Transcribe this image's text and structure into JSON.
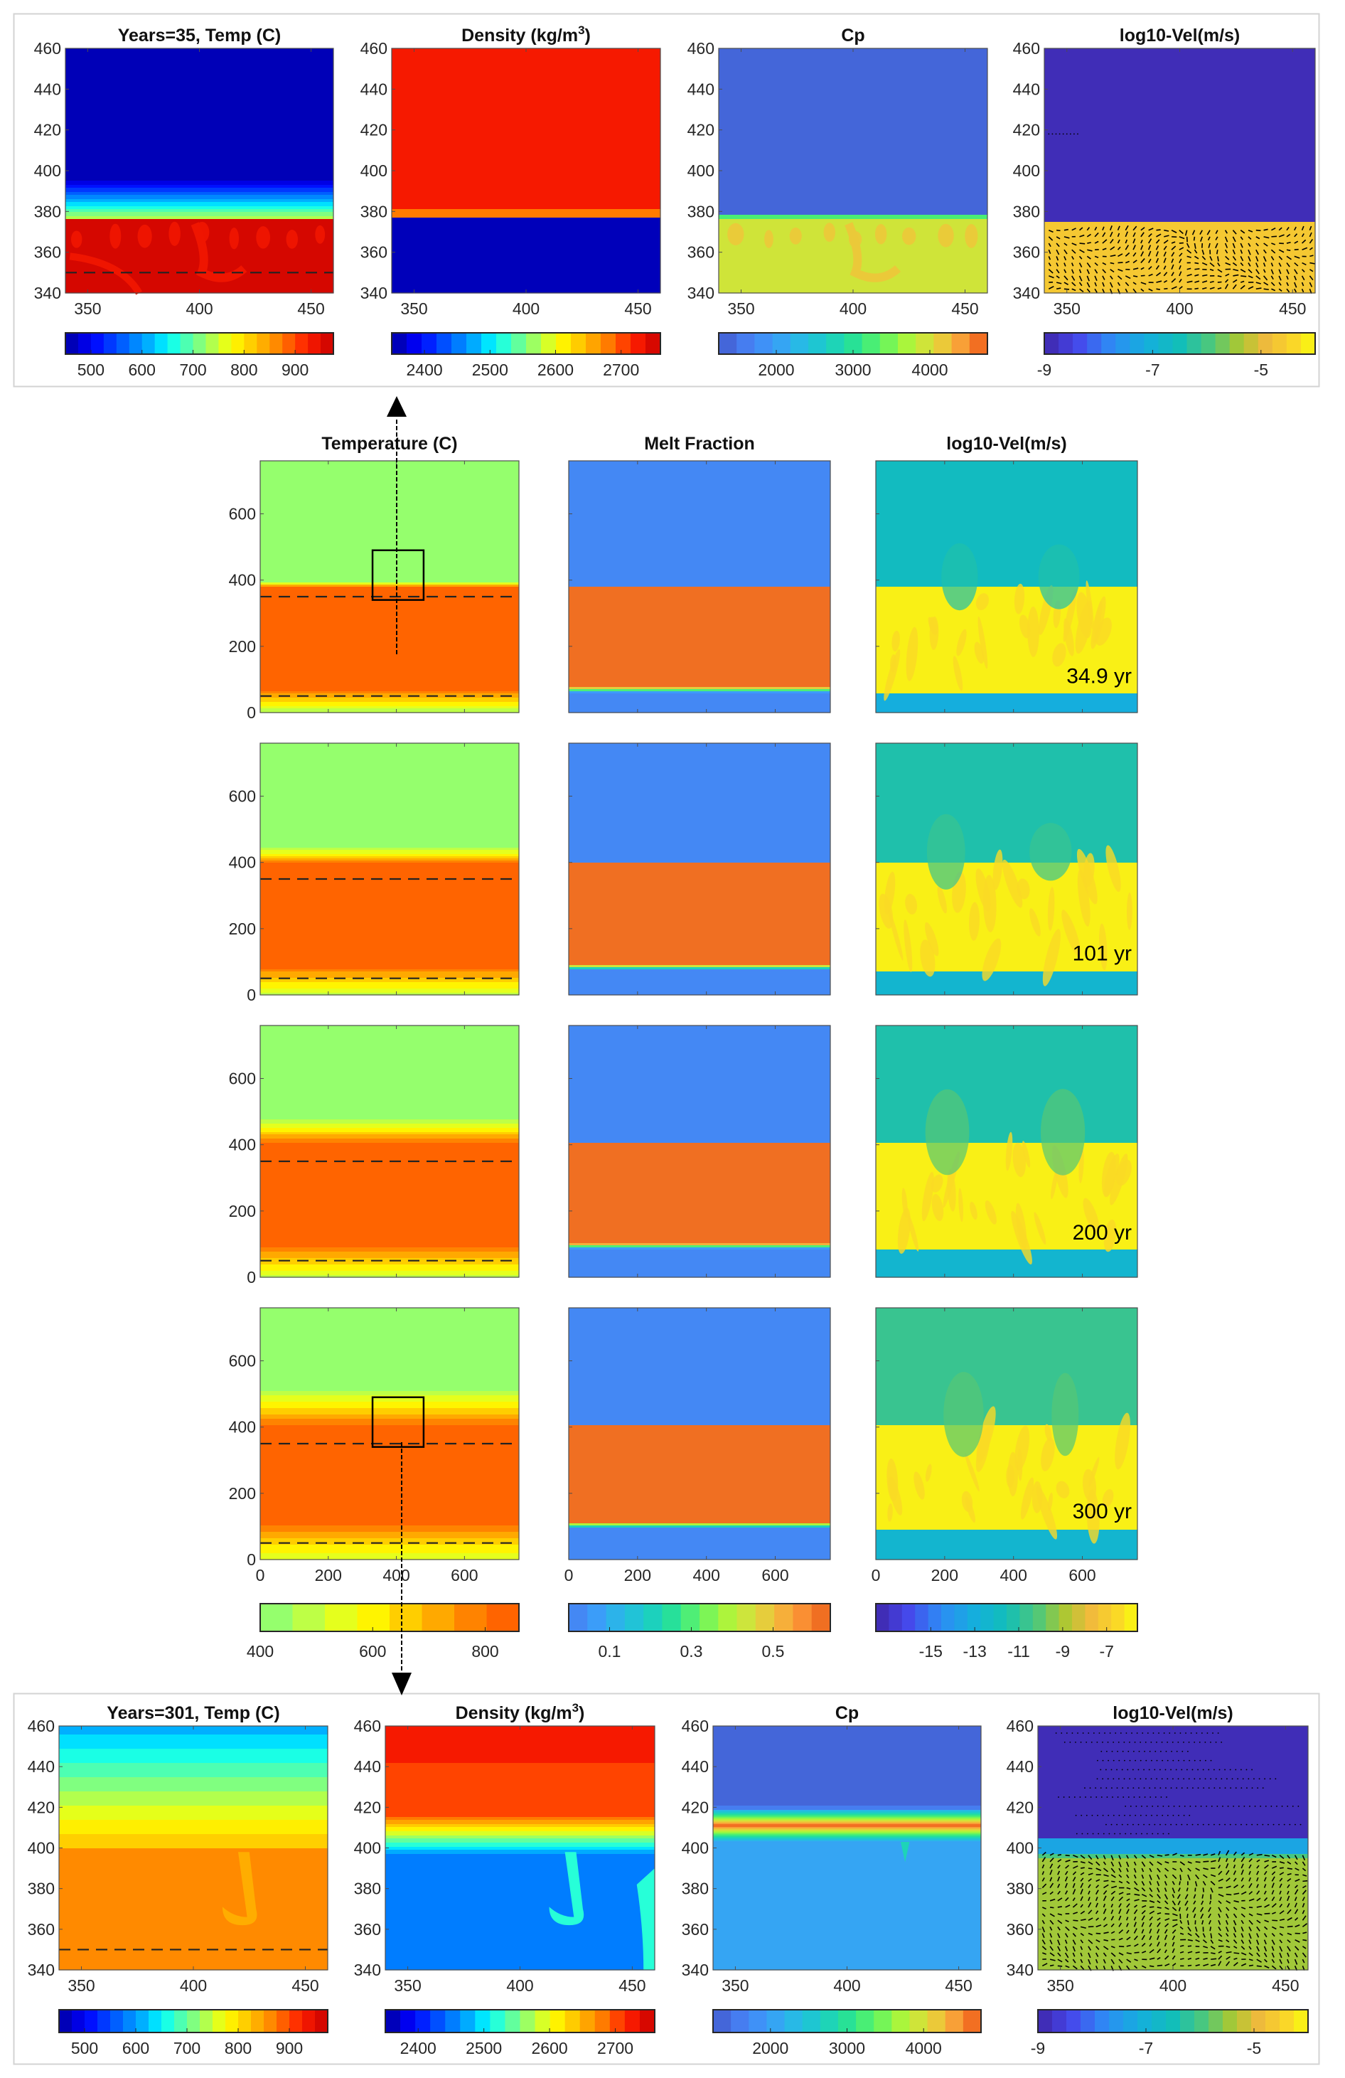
{
  "figure": {
    "description": "Magma-chamber convection simulation snapshots with zoomed insets"
  },
  "chart_data": [
    {
      "id": "top_inset",
      "type": "heatmap",
      "group": "zoom inset (upper)",
      "ylim": [
        340,
        460
      ],
      "xlim": [
        340,
        460
      ],
      "xticks": [
        350,
        400,
        450
      ],
      "yticks": [
        340,
        360,
        380,
        400,
        420,
        440,
        460
      ],
      "panels": [
        {
          "title": "Years=35, Temp (C)",
          "colormap": "jet",
          "clim": [
            450,
            975
          ],
          "nbins": 21,
          "cbar_ticks": [
            500,
            600,
            700,
            800,
            900
          ],
          "field": {
            "upper_value": 460,
            "interface_y": 376,
            "transition_top": 396,
            "lower_value": 950,
            "lower_plume_value": 925,
            "mode": "hot-lower"
          },
          "dashed_line_y": 350
        },
        {
          "title_main": "Density (kg/m",
          "title_sup": "3",
          "title_end": ")",
          "colormap": "jet",
          "clim": [
            2350,
            2760
          ],
          "nbins": 18,
          "cbar_ticks": [
            2400,
            2500,
            2600,
            2700
          ],
          "field": {
            "upper_value": 2720,
            "interface_y": 377,
            "band_value": 2690,
            "band_top": 381,
            "lower_value": 2360,
            "mode": "density"
          }
        },
        {
          "title": "Cp",
          "colormap": "parula",
          "clim": [
            1250,
            4750
          ],
          "nbins": 15,
          "cbar_ticks": [
            2000,
            3000,
            4000
          ],
          "field": {
            "upper_value": 1350,
            "interface_y": 377,
            "lower_value": 3900,
            "lower_plume_value": 4150,
            "mode": "cp35"
          }
        },
        {
          "title": "log10-Vel(m/s)",
          "colormap": "parula",
          "clim": [
            -9,
            -4
          ],
          "nbins": 19,
          "cbar_ticks": [
            -9,
            -7,
            -5
          ],
          "field": {
            "upper_value": -8.9,
            "interface_y": 375,
            "lower_value": -4.6,
            "mode": "vel35"
          },
          "quiver": true
        }
      ]
    },
    {
      "id": "main_grid",
      "type": "heatmap",
      "group": "full domain time series",
      "xlim": [
        0,
        760
      ],
      "ylim": [
        0,
        760
      ],
      "xticks": [
        0,
        200,
        400,
        600
      ],
      "yticks": [
        0,
        200,
        400,
        600
      ],
      "columns": [
        {
          "title": "Temperature (C)",
          "colormap": "jet-trunc",
          "clim": [
            400,
            860
          ],
          "nbins": 8,
          "cbar_ticks": [
            400,
            600,
            800
          ]
        },
        {
          "title": "Melt Fraction",
          "colormap": "parula",
          "clim": [
            0,
            0.64
          ],
          "nbins": 14,
          "cbar_ticks": [
            0.1,
            0.3,
            0.5
          ]
        },
        {
          "title": "log10-Vel(m/s)",
          "colormap": "parula",
          "clim": [
            -17.5,
            -5.6
          ],
          "nbins": 20,
          "cbar_ticks": [
            -15,
            -13,
            -11,
            -9,
            -7
          ]
        }
      ],
      "rows": [
        {
          "time_label": "34.9 yr",
          "chamber_top": 380,
          "chamber_bottom": 65,
          "thermal_halo_top": 395,
          "thermal_halo_bottom": 20,
          "vel_outside": -12.0,
          "vel_below": -13.2,
          "dashed_lines_y": [
            350,
            50
          ],
          "zoom_box": {
            "x": [
              330,
              480
            ],
            "y": [
              340,
              490
            ]
          }
        },
        {
          "time_label": "101 yr",
          "chamber_top": 402,
          "chamber_bottom": 80,
          "thermal_halo_top": 445,
          "thermal_halo_bottom": 10,
          "vel_outside": -11.2,
          "vel_below": -12.5,
          "dashed_lines_y": [
            350,
            50
          ]
        },
        {
          "time_label": "200 yr",
          "chamber_top": 408,
          "chamber_bottom": 90,
          "thermal_halo_top": 480,
          "thermal_halo_bottom": 5,
          "vel_outside": -11.0,
          "vel_below": -12.3,
          "dashed_lines_y": [
            350,
            50
          ]
        },
        {
          "time_label": "300 yr",
          "chamber_top": 408,
          "chamber_bottom": 100,
          "thermal_halo_top": 520,
          "thermal_halo_bottom": 0,
          "vel_outside": -10.6,
          "vel_below": -12.2,
          "dashed_lines_y": [
            350,
            50
          ],
          "zoom_box": {
            "x": [
              330,
              480
            ],
            "y": [
              340,
              490
            ]
          }
        }
      ]
    },
    {
      "id": "bottom_inset",
      "type": "heatmap",
      "group": "zoom inset (lower)",
      "ylim": [
        340,
        460
      ],
      "xlim": [
        340,
        460
      ],
      "xticks": [
        350,
        400,
        450
      ],
      "yticks": [
        340,
        360,
        380,
        400,
        420,
        440,
        460
      ],
      "panels": [
        {
          "title": "Years=301, Temp (C)",
          "colormap": "jet",
          "clim": [
            450,
            975
          ],
          "nbins": 21,
          "cbar_ticks": [
            500,
            600,
            700,
            800,
            900
          ],
          "field": {
            "mode": "temp301",
            "top_value": 610,
            "interface_y": 400,
            "lower_value": 855
          },
          "dashed_line_y": 350
        },
        {
          "title_main": "Density (kg/m",
          "title_sup": "3",
          "title_end": ")",
          "colormap": "jet",
          "clim": [
            2350,
            2760
          ],
          "nbins": 18,
          "cbar_ticks": [
            2400,
            2500,
            2600,
            2700
          ],
          "field": {
            "mode": "dens301",
            "top_value": 2720,
            "mid_value": 2695,
            "interface_y": 405,
            "lower_value": 2450
          }
        },
        {
          "title": "Cp",
          "colormap": "parula",
          "clim": [
            1250,
            4750
          ],
          "nbins": 15,
          "cbar_ticks": [
            2000,
            3000,
            4000
          ],
          "field": {
            "mode": "cp301",
            "upper_value": 1350,
            "peak_y": 411,
            "peak_value": 4700,
            "lower_value": 2050
          }
        },
        {
          "title": "log10-Vel(m/s)",
          "colormap": "parula",
          "clim": [
            -9,
            -4
          ],
          "nbins": 19,
          "cbar_ticks": [
            -9,
            -7,
            -5
          ],
          "field": {
            "mode": "vel301",
            "upper_value": -8.9,
            "interface_y": 405,
            "lower_value": -6.0
          },
          "quiver": true
        }
      ]
    }
  ]
}
